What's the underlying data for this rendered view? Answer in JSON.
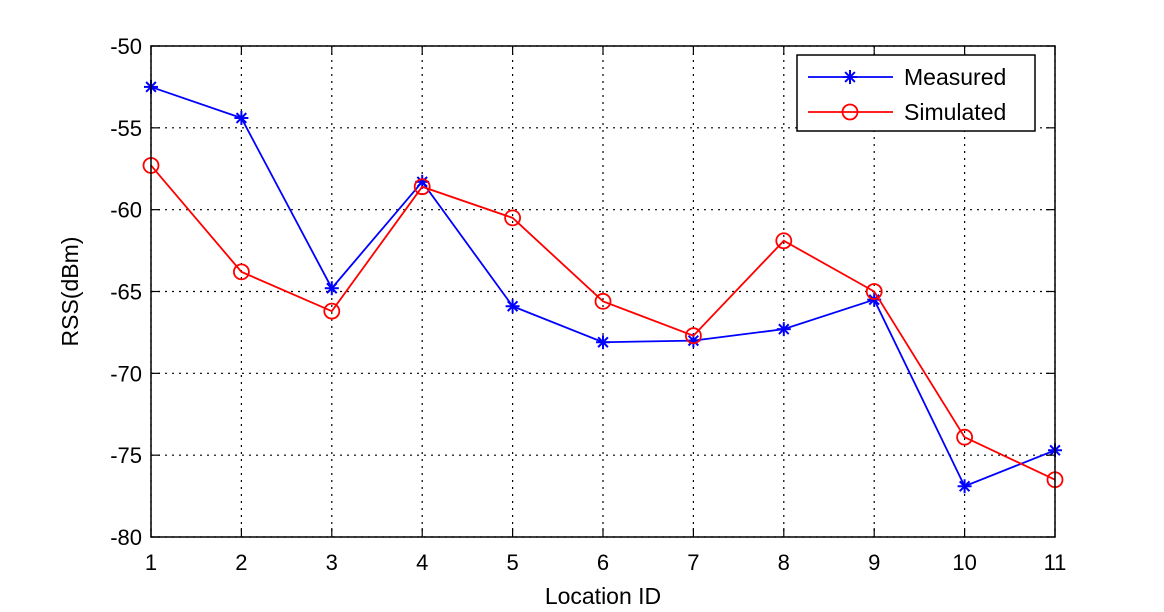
{
  "chart_data": {
    "type": "line",
    "title": "",
    "xlabel": "Location ID",
    "ylabel": "RSS(dBm)",
    "xlim": [
      1,
      11
    ],
    "ylim": [
      -80,
      -50
    ],
    "xticks": [
      1,
      2,
      3,
      4,
      5,
      6,
      7,
      8,
      9,
      10,
      11
    ],
    "yticks": [
      -50,
      -55,
      -60,
      -65,
      -70,
      -75,
      -80
    ],
    "grid": true,
    "legend_position": "top-right",
    "x": [
      1,
      2,
      3,
      4,
      5,
      6,
      7,
      8,
      9,
      10,
      11
    ],
    "series": [
      {
        "name": "Measured",
        "color": "#0000ff",
        "marker": "asterisk",
        "values": [
          -52.5,
          -54.4,
          -64.8,
          -58.3,
          -65.9,
          -68.1,
          -68.0,
          -67.3,
          -65.5,
          -76.9,
          -74.7
        ]
      },
      {
        "name": "Simulated",
        "color": "#ff0000",
        "marker": "circle",
        "values": [
          -57.3,
          -63.8,
          -66.2,
          -58.6,
          -60.5,
          -65.6,
          -67.7,
          -61.9,
          -65.0,
          -73.9,
          -76.5
        ]
      }
    ]
  }
}
